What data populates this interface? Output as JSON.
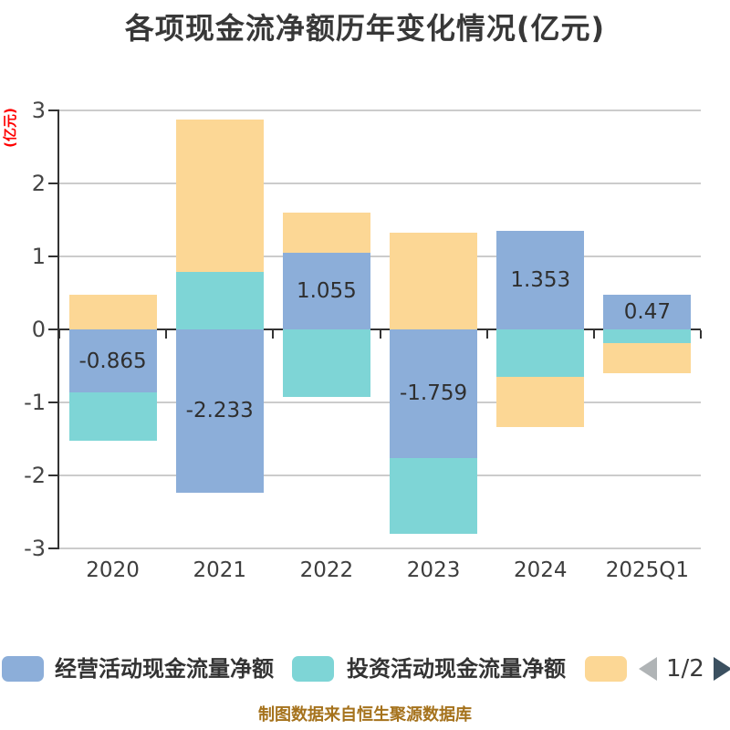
{
  "title": "各项现金流净额历年变化情况(亿元)",
  "footer": {
    "text": "制图数据来自恒生聚源数据库",
    "color": "#a5721c"
  },
  "chart_data": {
    "type": "bar",
    "stacked": true,
    "title": "各项现金流净额历年变化情况(亿元)",
    "ylabel": "(亿元)",
    "ylabel_color": "#ff0000",
    "ylim": [
      -3,
      3
    ],
    "yticks": [
      3,
      2,
      1,
      0,
      -1,
      -2,
      -3
    ],
    "grid": true,
    "grid_color": "#cccccc",
    "axis_color": "#333333",
    "tick_label_color": "#454545",
    "xtick_label_color": "#3d3d3d",
    "categories": [
      "2020",
      "2021",
      "2022",
      "2023",
      "2024",
      "2025Q1"
    ],
    "series": [
      {
        "name": "经营活动现金流量净额",
        "color": "#8caed9",
        "values": [
          -0.865,
          -2.233,
          1.055,
          -1.759,
          1.353,
          0.47
        ],
        "labels": [
          "-0.865",
          "-2.233",
          "1.055",
          "-1.759",
          "1.353",
          "0.47"
        ]
      },
      {
        "name": "投资活动现金流量净额",
        "color": "#7ed5d6",
        "values": [
          -0.657,
          0.79,
          -0.93,
          -1.04,
          -0.648,
          -0.185
        ]
      },
      {
        "name": "",
        "color": "#fcd795",
        "values": [
          0.47,
          2.085,
          0.545,
          1.33,
          -0.685,
          -0.415
        ]
      }
    ],
    "legend_position": "bottom"
  },
  "legend": {
    "items": [
      {
        "label": "经营活动现金流量净额",
        "color": "#8caed9"
      },
      {
        "label": "投资活动现金流量净额",
        "color": "#7ed5d6"
      },
      {
        "label": "",
        "color": "#fcd795"
      }
    ],
    "pagination": "1/2",
    "prev_arrow_color": "#b0b4b6",
    "next_arrow_color": "#3b5060"
  }
}
